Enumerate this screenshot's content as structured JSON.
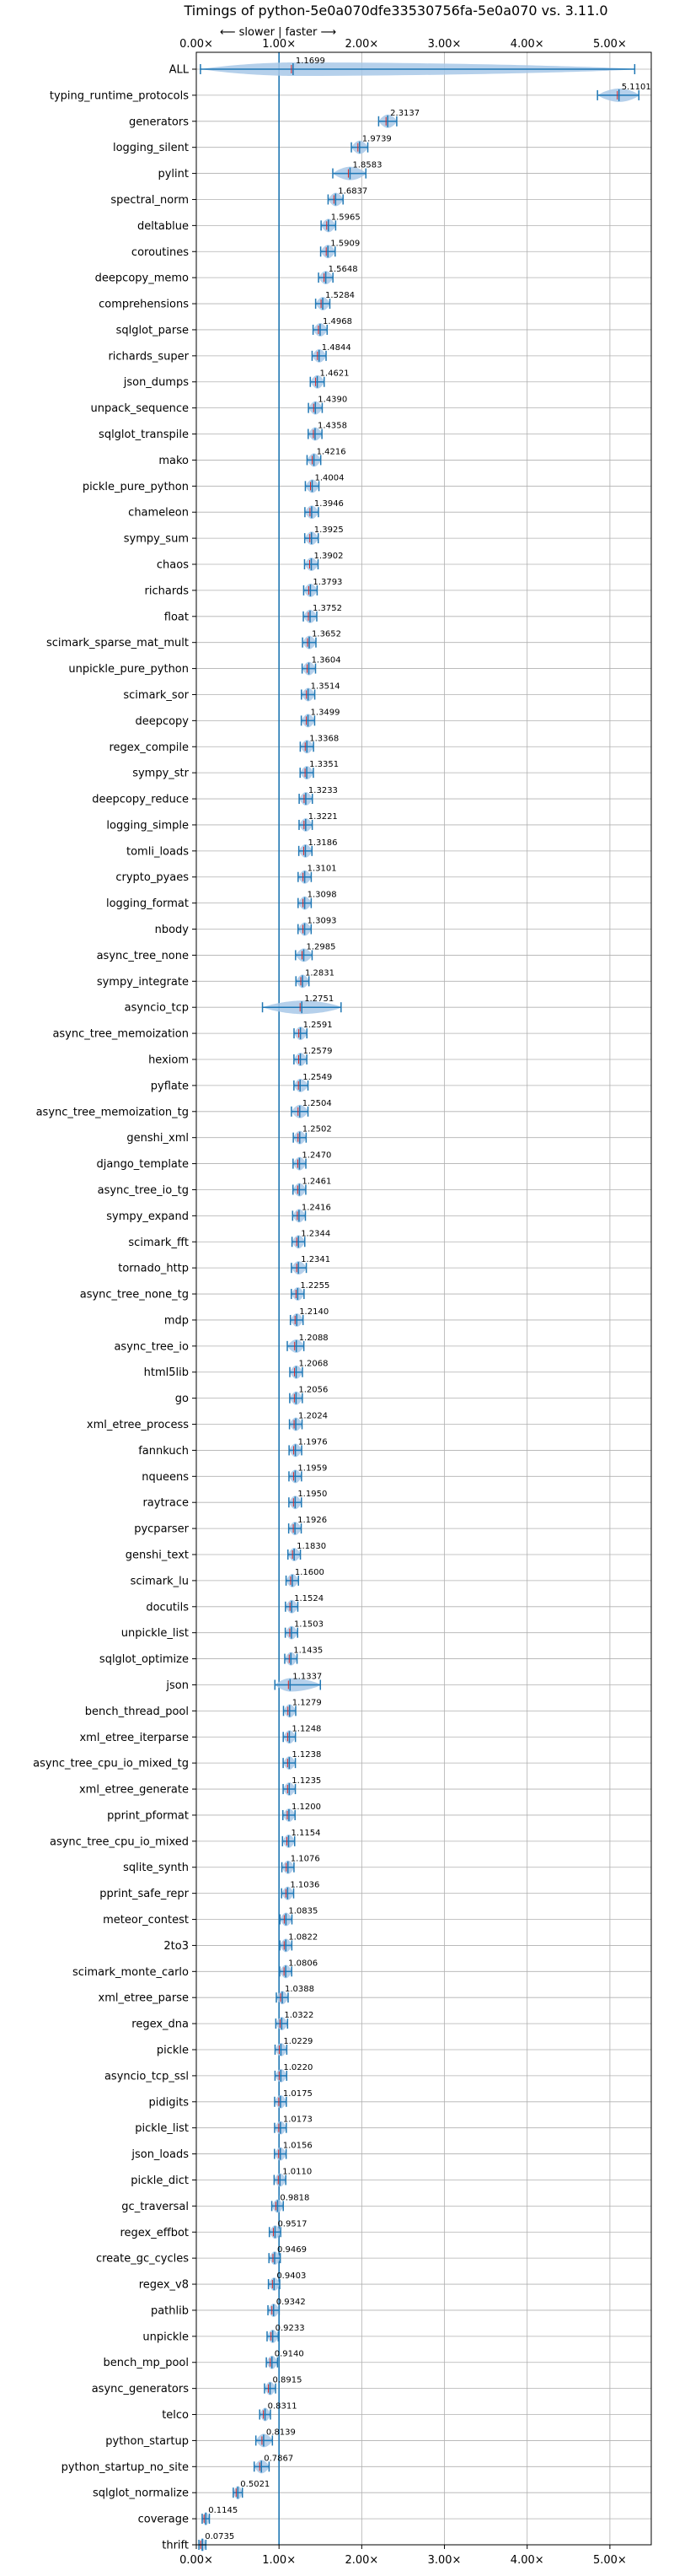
{
  "chart_data": {
    "type": "violin",
    "title": "Timings of python-5e0a070dfe33530756fa-5e0a070 vs. 3.11.0",
    "annotation": "⟵ slower | faster ⟶",
    "xlim": [
      0,
      5.5
    ],
    "xticks": [
      0,
      1,
      2,
      3,
      4,
      5
    ],
    "xtick_labels": [
      "0.00×",
      "1.00×",
      "2.00×",
      "3.00×",
      "4.00×",
      "5.00×"
    ],
    "reference_line": 1.0,
    "grid": true,
    "colors": {
      "violin": "#a8c8e8",
      "accent": "#1f77b4",
      "median": "#d62728",
      "grid": "#b0b0b0"
    },
    "categories": [
      "ALL",
      "typing_runtime_protocols",
      "generators",
      "logging_silent",
      "pylint",
      "spectral_norm",
      "deltablue",
      "coroutines",
      "deepcopy_memo",
      "comprehensions",
      "sqlglot_parse",
      "richards_super",
      "json_dumps",
      "unpack_sequence",
      "sqlglot_transpile",
      "mako",
      "pickle_pure_python",
      "chameleon",
      "sympy_sum",
      "chaos",
      "richards",
      "float",
      "scimark_sparse_mat_mult",
      "unpickle_pure_python",
      "scimark_sor",
      "deepcopy",
      "regex_compile",
      "sympy_str",
      "deepcopy_reduce",
      "logging_simple",
      "tomli_loads",
      "crypto_pyaes",
      "logging_format",
      "nbody",
      "async_tree_none",
      "sympy_integrate",
      "asyncio_tcp",
      "async_tree_memoization",
      "hexiom",
      "pyflate",
      "async_tree_memoization_tg",
      "genshi_xml",
      "django_template",
      "async_tree_io_tg",
      "sympy_expand",
      "scimark_fft",
      "tornado_http",
      "async_tree_none_tg",
      "mdp",
      "async_tree_io",
      "html5lib",
      "go",
      "xml_etree_process",
      "fannkuch",
      "nqueens",
      "raytrace",
      "pycparser",
      "genshi_text",
      "scimark_lu",
      "docutils",
      "unpickle_list",
      "sqlglot_optimize",
      "json",
      "bench_thread_pool",
      "xml_etree_iterparse",
      "async_tree_cpu_io_mixed_tg",
      "xml_etree_generate",
      "pprint_pformat",
      "async_tree_cpu_io_mixed",
      "sqlite_synth",
      "pprint_safe_repr",
      "meteor_contest",
      "2to3",
      "scimark_monte_carlo",
      "xml_etree_parse",
      "regex_dna",
      "pickle",
      "asyncio_tcp_ssl",
      "pidigits",
      "pickle_list",
      "json_loads",
      "pickle_dict",
      "gc_traversal",
      "regex_effbot",
      "create_gc_cycles",
      "regex_v8",
      "pathlib",
      "unpickle",
      "bench_mp_pool",
      "async_generators",
      "telco",
      "python_startup",
      "python_startup_no_site",
      "sqlglot_normalize",
      "coverage",
      "thrift"
    ],
    "values": [
      1.1699,
      5.1101,
      2.3137,
      1.9739,
      1.8583,
      1.6837,
      1.5965,
      1.5909,
      1.5648,
      1.5284,
      1.4968,
      1.4844,
      1.4621,
      1.439,
      1.4358,
      1.4216,
      1.4004,
      1.3946,
      1.3925,
      1.3902,
      1.3793,
      1.3752,
      1.3652,
      1.3604,
      1.3514,
      1.3499,
      1.3368,
      1.3351,
      1.3233,
      1.3221,
      1.3186,
      1.3101,
      1.3098,
      1.3093,
      1.2985,
      1.2831,
      1.2751,
      1.2591,
      1.2579,
      1.2549,
      1.2504,
      1.2502,
      1.247,
      1.2461,
      1.2416,
      1.2344,
      1.2341,
      1.2255,
      1.214,
      1.2088,
      1.2068,
      1.2056,
      1.2024,
      1.1976,
      1.1959,
      1.195,
      1.1926,
      1.183,
      1.16,
      1.1524,
      1.1503,
      1.1435,
      1.1337,
      1.1279,
      1.1248,
      1.1238,
      1.1235,
      1.12,
      1.1154,
      1.1076,
      1.1036,
      1.0835,
      1.0822,
      1.0806,
      1.0388,
      1.0322,
      1.0229,
      1.022,
      1.0175,
      1.0173,
      1.0156,
      1.011,
      0.9818,
      0.9517,
      0.9469,
      0.9403,
      0.9342,
      0.9233,
      0.914,
      0.8915,
      0.8311,
      0.8139,
      0.7867,
      0.5021,
      0.1145,
      0.0735
    ],
    "labels": [
      "1.1699",
      "5.1101",
      "2.3137",
      "1.9739",
      "1.8583",
      "1.6837",
      "1.5965",
      "1.5909",
      "1.5648",
      "1.5284",
      "1.4968",
      "1.4844",
      "1.4621",
      "1.4390",
      "1.4358",
      "1.4216",
      "1.4004",
      "1.3946",
      "1.3925",
      "1.3902",
      "1.3793",
      "1.3752",
      "1.3652",
      "1.3604",
      "1.3514",
      "1.3499",
      "1.3368",
      "1.3351",
      "1.3233",
      "1.3221",
      "1.3186",
      "1.3101",
      "1.3098",
      "1.3093",
      "1.2985",
      "1.2831",
      "1.2751",
      "1.2591",
      "1.2579",
      "1.2549",
      "1.2504",
      "1.2502",
      "1.2470",
      "1.2461",
      "1.2416",
      "1.2344",
      "1.2341",
      "1.2255",
      "1.2140",
      "1.2088",
      "1.2068",
      "1.2056",
      "1.2024",
      "1.1976",
      "1.1959",
      "1.1950",
      "1.1926",
      "1.1830",
      "1.1600",
      "1.1524",
      "1.1503",
      "1.1435",
      "1.1337",
      "1.1279",
      "1.1248",
      "1.1238",
      "1.1235",
      "1.1200",
      "1.1154",
      "1.1076",
      "1.1036",
      "1.0835",
      "1.0822",
      "1.0806",
      "1.0388",
      "1.0322",
      "1.0229",
      "1.0220",
      "1.0175",
      "1.0173",
      "1.0156",
      "1.0110",
      "0.9818",
      "0.9517",
      "0.9469",
      "0.9403",
      "0.9342",
      "0.9233",
      "0.9140",
      "0.8915",
      "0.8311",
      "0.8139",
      "0.7867",
      "0.5021",
      "0.1145",
      "0.0735"
    ],
    "ranges": {
      "ALL": [
        0.05,
        5.3
      ],
      "typing_runtime_protocols": [
        4.85,
        5.35
      ],
      "pylint": [
        1.65,
        2.05
      ],
      "asyncio_tcp": [
        0.8,
        1.75
      ],
      "json": [
        0.95,
        1.5
      ],
      "async_tree_memoization_tg": [
        1.15,
        1.35
      ],
      "async_tree_none": [
        1.2,
        1.4
      ],
      "tornado_http": [
        1.15,
        1.33
      ],
      "async_tree_io": [
        1.1,
        1.3
      ],
      "pyflate": [
        1.18,
        1.35
      ],
      "python_startup": [
        0.72,
        0.92
      ],
      "python_startup_no_site": [
        0.7,
        0.88
      ]
    }
  }
}
